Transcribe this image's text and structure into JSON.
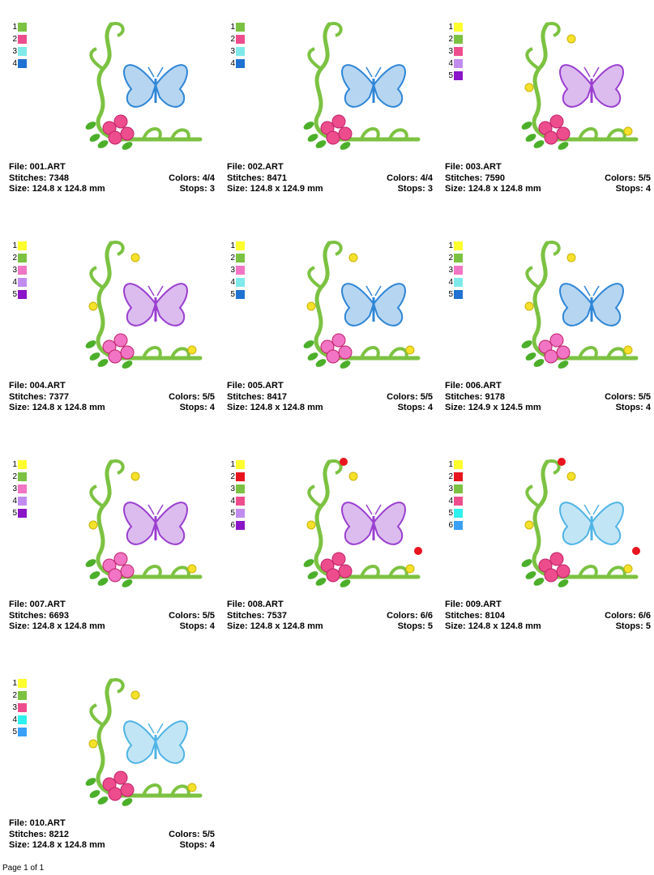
{
  "labels": {
    "file": "File:",
    "stitches": "Stitches:",
    "size": "Size:",
    "colors": "Colors:",
    "stops": "Stops:"
  },
  "designs": [
    {
      "file": "001.ART",
      "stitches": "7348",
      "size": "124.8 x 124.8 mm",
      "colors": "4/4",
      "stops": "3",
      "butterfly": "#2f86d6",
      "swatches": [
        "#7cc242",
        "#ee4d8d",
        "#7fe9ea",
        "#1f72d1"
      ]
    },
    {
      "file": "002.ART",
      "stitches": "8471",
      "size": "124.8 x 124.9 mm",
      "colors": "4/4",
      "stops": "3",
      "butterfly": "#2f86d6",
      "swatches": [
        "#7cc242",
        "#ee4d8d",
        "#7fe9ea",
        "#1f72d1"
      ]
    },
    {
      "file": "003.ART",
      "stitches": "7590",
      "size": "124.8 x 124.8 mm",
      "colors": "5/5",
      "stops": "4",
      "butterfly": "#9a3fd0",
      "swatches": [
        "#ffff2e",
        "#7cc242",
        "#ee4d8d",
        "#c08cf0",
        "#8a14c8"
      ]
    },
    {
      "file": "004.ART",
      "stitches": "7377",
      "size": "124.8 x 124.8 mm",
      "colors": "5/5",
      "stops": "4",
      "butterfly": "#9a3fd0",
      "swatches": [
        "#ffff2e",
        "#7cc242",
        "#f274c4",
        "#c08cf0",
        "#8a14c8"
      ]
    },
    {
      "file": "005.ART",
      "stitches": "8417",
      "size": "124.8 x 124.8 mm",
      "colors": "5/5",
      "stops": "4",
      "butterfly": "#2f86d6",
      "swatches": [
        "#ffff2e",
        "#7cc242",
        "#f274c4",
        "#7fe9ea",
        "#1f72d1"
      ]
    },
    {
      "file": "006.ART",
      "stitches": "9178",
      "size": "124.9 x 124.5 mm",
      "colors": "5/5",
      "stops": "4",
      "butterfly": "#2f86d6",
      "swatches": [
        "#ffff2e",
        "#7cc242",
        "#f274c4",
        "#7fe9ea",
        "#1f72d1"
      ]
    },
    {
      "file": "007.ART",
      "stitches": "6693",
      "size": "124.8 x 124.8 mm",
      "colors": "5/5",
      "stops": "4",
      "butterfly": "#9a3fd0",
      "swatches": [
        "#ffff2e",
        "#7cc242",
        "#f274c4",
        "#c08cf0",
        "#8a14c8"
      ]
    },
    {
      "file": "008.ART",
      "stitches": "7537",
      "size": "124.8 x 124.8 mm",
      "colors": "6/6",
      "stops": "5",
      "butterfly": "#9a3fd0",
      "swatches": [
        "#ffff2e",
        "#e8141e",
        "#7cc242",
        "#ee4d8d",
        "#c08cf0",
        "#8a14c8"
      ]
    },
    {
      "file": "009.ART",
      "stitches": "8104",
      "size": "124.8 x 124.8 mm",
      "colors": "6/6",
      "stops": "5",
      "butterfly": "#4fb4e6",
      "swatches": [
        "#ffff2e",
        "#e8141e",
        "#7cc242",
        "#ee4d8d",
        "#2ef0ee",
        "#3aa0f5"
      ]
    },
    {
      "file": "010.ART",
      "stitches": "8212",
      "size": "124.8 x 124.8 mm",
      "colors": "5/5",
      "stops": "4",
      "butterfly": "#4fb4e6",
      "swatches": [
        "#ffff2e",
        "#7cc242",
        "#ee4d8d",
        "#2ef0ee",
        "#3aa0f5"
      ]
    }
  ],
  "footer": "Page 1 of 1"
}
